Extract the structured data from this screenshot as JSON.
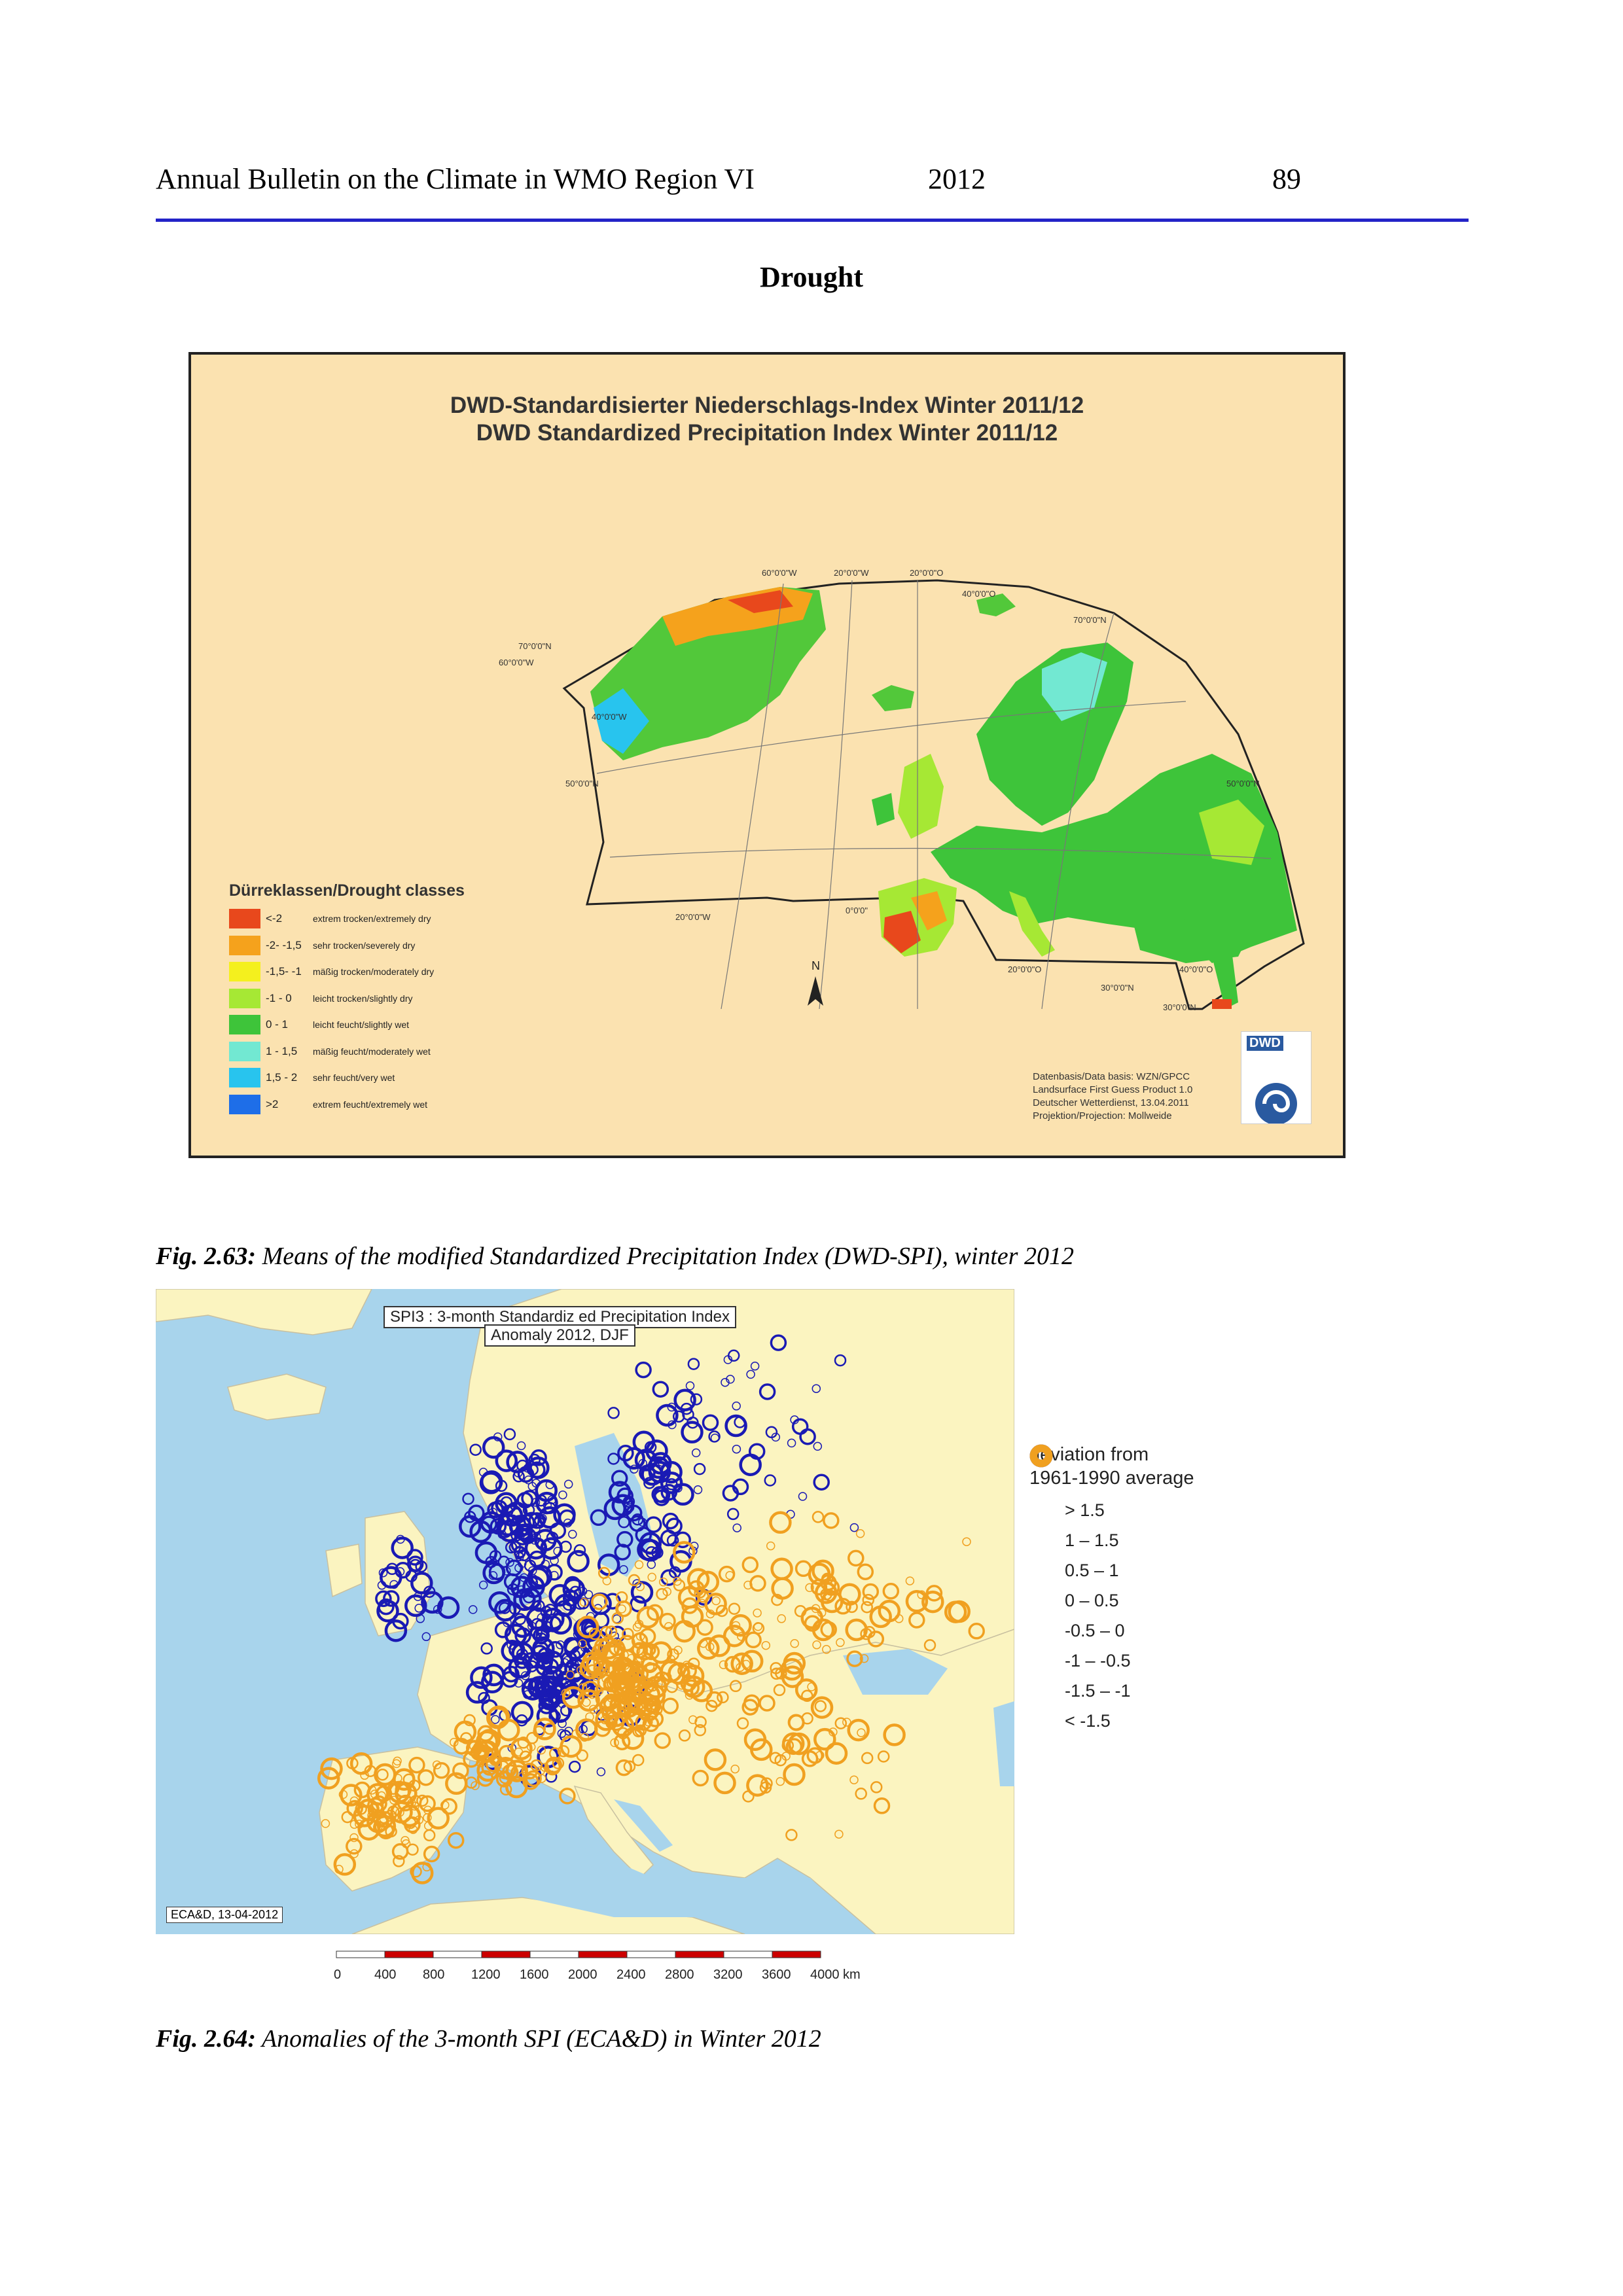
{
  "header": {
    "title": "Annual Bulletin on the Climate in WMO Region VI",
    "year": "2012",
    "page_number": "89"
  },
  "section_title": "Drought",
  "figure1": {
    "title_line1": "DWD-Standardisierter Niederschlags-Index Winter 2011/12",
    "title_line2": "DWD Standardized Precipitation Index Winter 2011/12",
    "graticule_labels": [
      "60°0'0\"W",
      "20°0'0\"W",
      "20°0'0\"O",
      "40°0'0\"O",
      "70°0'0\"N",
      "60°0'0\"W",
      "40°0'0\"W",
      "50°0'0\"N",
      "50°0'0\"N",
      "20°0'0\"W",
      "0°0'0\"",
      "20°0'0\"O",
      "30°0'0\"N",
      "40°0'0\"O",
      "30°0'0\"N",
      "70°0'0\"N"
    ],
    "north_label": "N",
    "legend_title": "Dürreklassen/Drought classes",
    "legend": [
      {
        "code": "<-2",
        "label": "extrem trocken/extremely dry",
        "color": "#e8481c"
      },
      {
        "code": "-2- -1,5",
        "label": "sehr trocken/severely dry",
        "color": "#f5a21c"
      },
      {
        "code": "-1,5- -1",
        "label": "mäßig trocken/moderately dry",
        "color": "#f4f01e"
      },
      {
        "code": "-1 - 0",
        "label": "leicht trocken/slightly dry",
        "color": "#a6e834"
      },
      {
        "code": "0 - 1",
        "label": "leicht feucht/slightly wet",
        "color": "#3ec43a"
      },
      {
        "code": "1 - 1,5",
        "label": "mäßig feucht/moderately wet",
        "color": "#72e8d2"
      },
      {
        "code": "1,5 - 2",
        "label": "sehr feucht/very wet",
        "color": "#28c4ee"
      },
      {
        "code": ">2",
        "label": "extrem feucht/extremely wet",
        "color": "#1e6ee8"
      }
    ],
    "data_info": [
      "Datenbasis/Data basis: WZN/GPCC",
      "Landsurface First Guess Product 1.0",
      "Deutscher Wetterdienst, 13.04.2011",
      "Projektion/Projection: Mollweide"
    ],
    "logo_text": "DWD"
  },
  "caption1": {
    "label": "Fig. 2.63:",
    "text": " Means of the modified Standardized Precipitation Index (DWD-SPI), winter 2012"
  },
  "figure2": {
    "title_line1": "SPI3 : 3-month Standardiz ed Precipitation Index",
    "title_line2": "Anomaly 2012, DJF",
    "legend_header_line1": "deviation from",
    "legend_header_line2": "1961-1990 average",
    "legend": [
      {
        "label": "> 1.5",
        "color": "#1a1ab4"
      },
      {
        "label": "1 – 1.5",
        "color": "#1a1ab4"
      },
      {
        "label": "0.5 – 1",
        "color": "#1a1ab4"
      },
      {
        "label": "0 – 0.5",
        "color": "#1a1ab4"
      },
      {
        "label": "-0.5 – 0",
        "color": "#f0a020"
      },
      {
        "label": "-1 – -0.5",
        "color": "#f0a020"
      },
      {
        "label": "-1.5 – -1",
        "color": "#f0a020"
      },
      {
        "label": "< -1.5",
        "color": "#f0a020"
      }
    ],
    "credit": "ECA&D, 13-04-2012",
    "scale_labels": [
      "0",
      "400",
      "800",
      "1200",
      "1600",
      "2000",
      "2400",
      "2800",
      "3200",
      "3600",
      "4000 km"
    ]
  },
  "caption2": {
    "label": "Fig. 2.64:",
    "text": " Anomalies of the 3-month SPI (ECA&D) in Winter 2012"
  }
}
